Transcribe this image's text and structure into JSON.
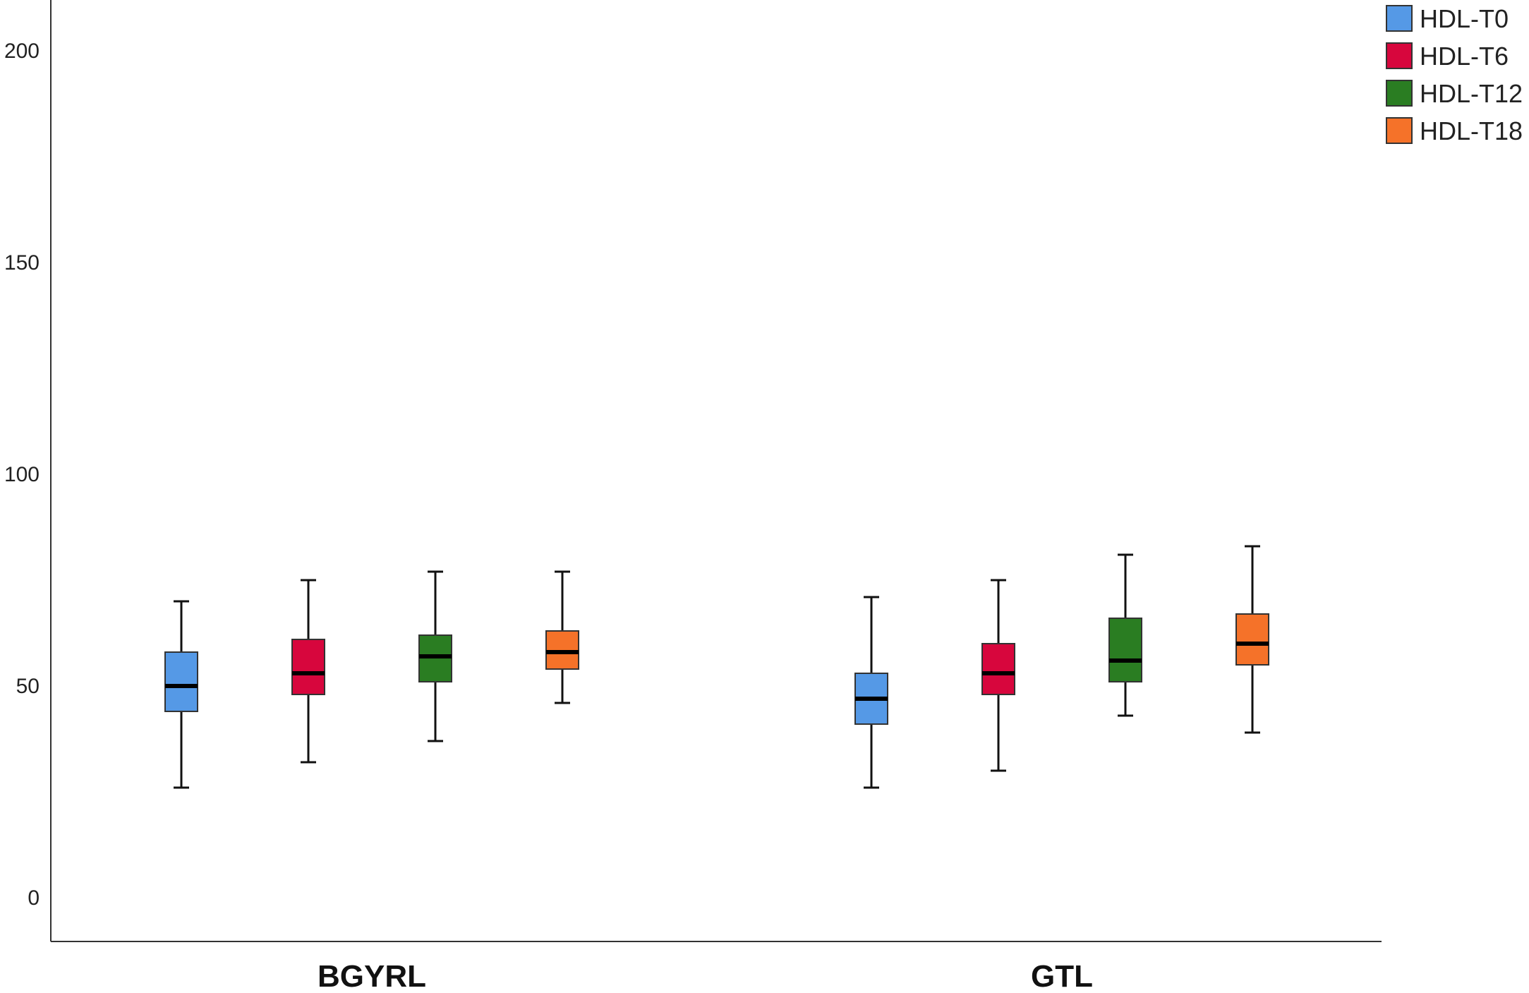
{
  "chart_data": {
    "type": "boxplot",
    "categories": [
      "BGYRL",
      "GTL"
    ],
    "ylim": [
      -10,
      210
    ],
    "yticks": [
      0,
      50,
      100,
      150,
      200
    ],
    "ytick_labels": [
      "0",
      "50",
      "100",
      "150",
      "200"
    ],
    "legend_position": "top-right",
    "grid": false,
    "series": [
      {
        "name": "HDL-T0",
        "color": "#5599e6",
        "boxes": [
          {
            "category": "BGYRL",
            "min": 26,
            "q1": 44,
            "median": 50,
            "q3": 58,
            "max": 70
          },
          {
            "category": "GTL",
            "min": 26,
            "q1": 41,
            "median": 47,
            "q3": 53,
            "max": 71
          }
        ]
      },
      {
        "name": "HDL-T6",
        "color": "#d7063d",
        "boxes": [
          {
            "category": "BGYRL",
            "min": 32,
            "q1": 48,
            "median": 53,
            "q3": 61,
            "max": 75
          },
          {
            "category": "GTL",
            "min": 30,
            "q1": 48,
            "median": 53,
            "q3": 60,
            "max": 75
          }
        ]
      },
      {
        "name": "HDL-T12",
        "color": "#2a7d22",
        "boxes": [
          {
            "category": "BGYRL",
            "min": 37,
            "q1": 51,
            "median": 57,
            "q3": 62,
            "max": 77
          },
          {
            "category": "GTL",
            "min": 43,
            "q1": 51,
            "median": 56,
            "q3": 66,
            "max": 81
          }
        ]
      },
      {
        "name": "HDL-T18",
        "color": "#f57229",
        "boxes": [
          {
            "category": "BGYRL",
            "min": 46,
            "q1": 54,
            "median": 58,
            "q3": 63,
            "max": 77
          },
          {
            "category": "GTL",
            "min": 39,
            "q1": 55,
            "median": 60,
            "q3": 67,
            "max": 83
          }
        ]
      }
    ]
  }
}
